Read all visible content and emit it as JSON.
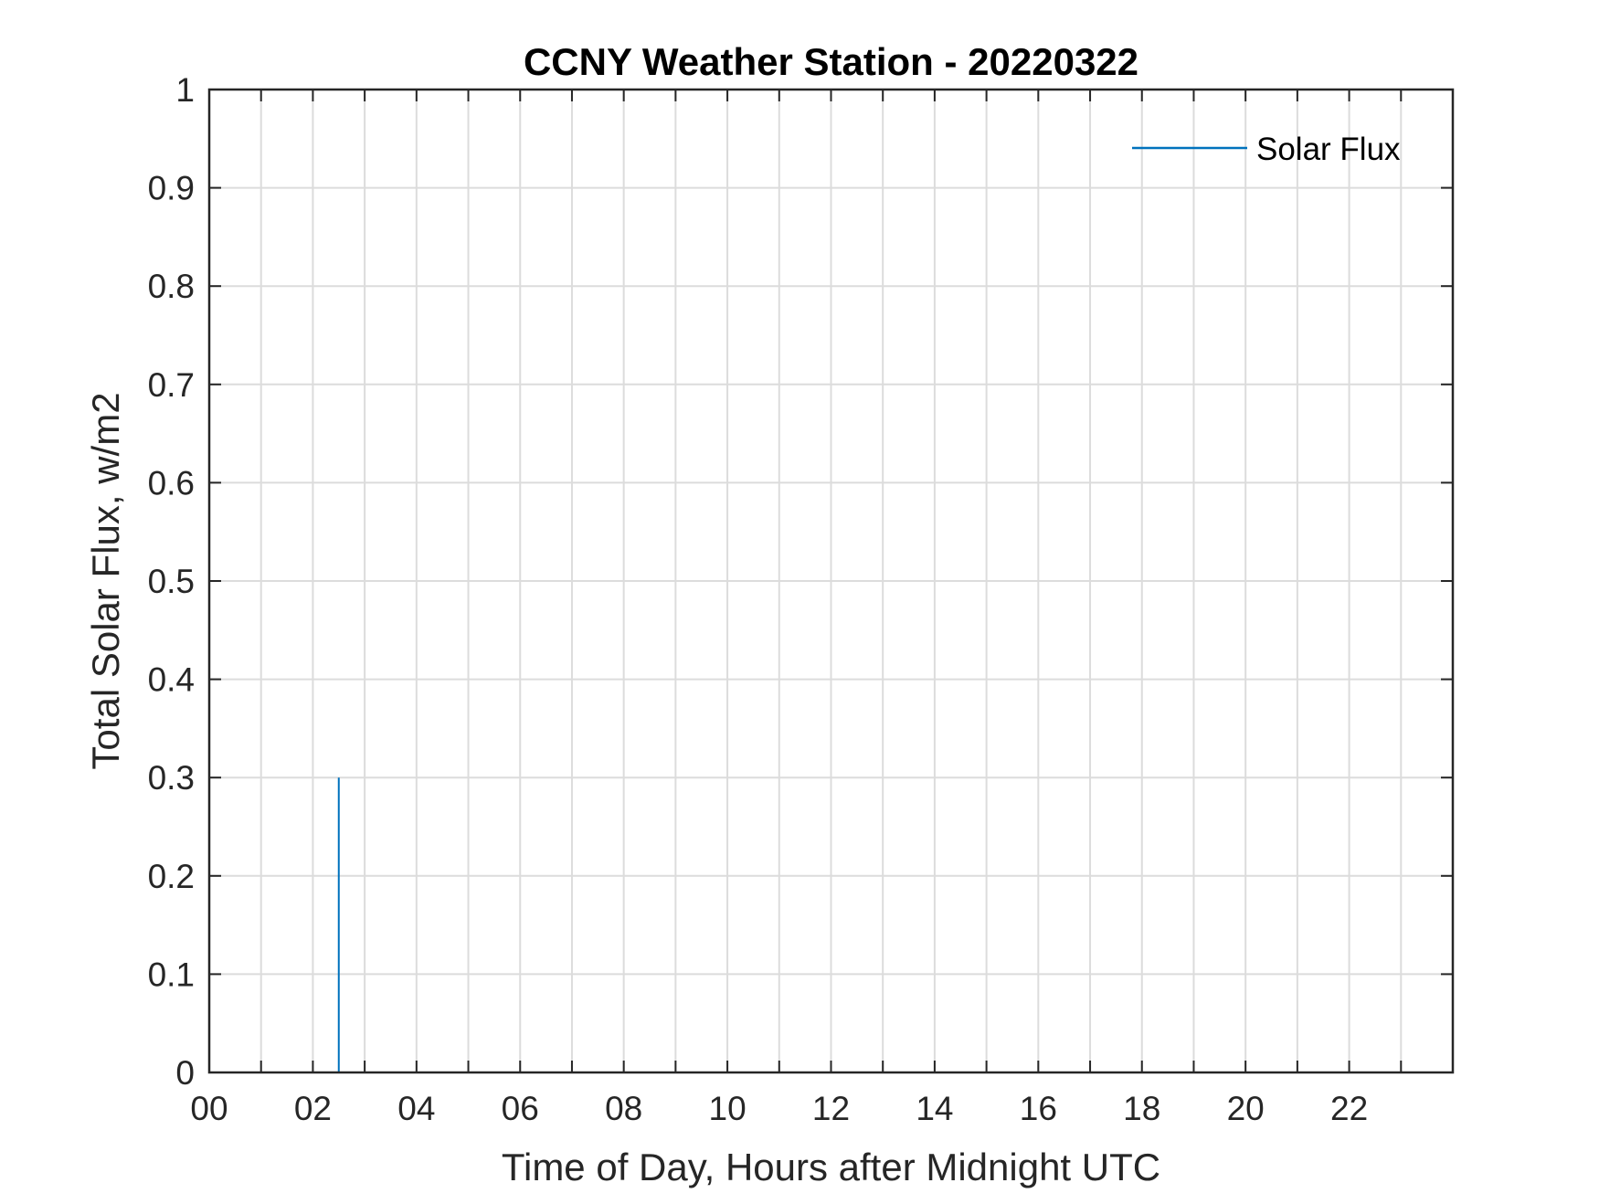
{
  "chart_data": {
    "type": "line",
    "title": "CCNY Weather Station - 20220322",
    "xlabel": "Time of Day, Hours after Midnight UTC",
    "ylabel": "Total Solar Flux, w/m2",
    "xlim": [
      0,
      24
    ],
    "ylim": [
      0,
      1
    ],
    "grid": true,
    "legend_position": "top-right",
    "x_ticks": [
      0,
      2,
      4,
      6,
      8,
      10,
      12,
      14,
      16,
      18,
      20,
      22
    ],
    "x_tick_labels": [
      "00",
      "02",
      "04",
      "06",
      "08",
      "10",
      "12",
      "14",
      "16",
      "18",
      "20",
      "22"
    ],
    "y_ticks": [
      0,
      0.1,
      0.2,
      0.3,
      0.4,
      0.5,
      0.6,
      0.7,
      0.8,
      0.9,
      1
    ],
    "y_tick_labels": [
      "0",
      "0.1",
      "0.2",
      "0.3",
      "0.4",
      "0.5",
      "0.6",
      "0.7",
      "0.8",
      "0.9",
      "1"
    ],
    "series": [
      {
        "name": "Solar Flux",
        "color": "#0072bd",
        "x": [
          2.5,
          2.5
        ],
        "y": [
          0,
          0.3
        ]
      }
    ]
  }
}
